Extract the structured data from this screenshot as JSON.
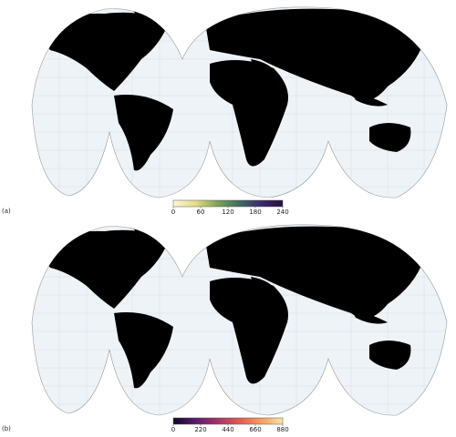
{
  "panels": [
    {
      "label": "(a)",
      "colorbar": {
        "range": [
          0,
          240
        ],
        "ticks": [
          0,
          60,
          120,
          180,
          240
        ],
        "colors": [
          "#fdf6d8",
          "#e6dd8a",
          "#7fa35a",
          "#3e6e5e",
          "#3b2a6b",
          "#2b0f3e"
        ]
      }
    },
    {
      "label": "(b)",
      "colorbar": {
        "range": [
          0,
          880
        ],
        "ticks": [
          0,
          220,
          440,
          660,
          880
        ],
        "colors": [
          "#0d0829",
          "#5b1a6e",
          "#a3326b",
          "#e05a4f",
          "#f89b5e",
          "#fde3a0"
        ]
      }
    }
  ]
}
